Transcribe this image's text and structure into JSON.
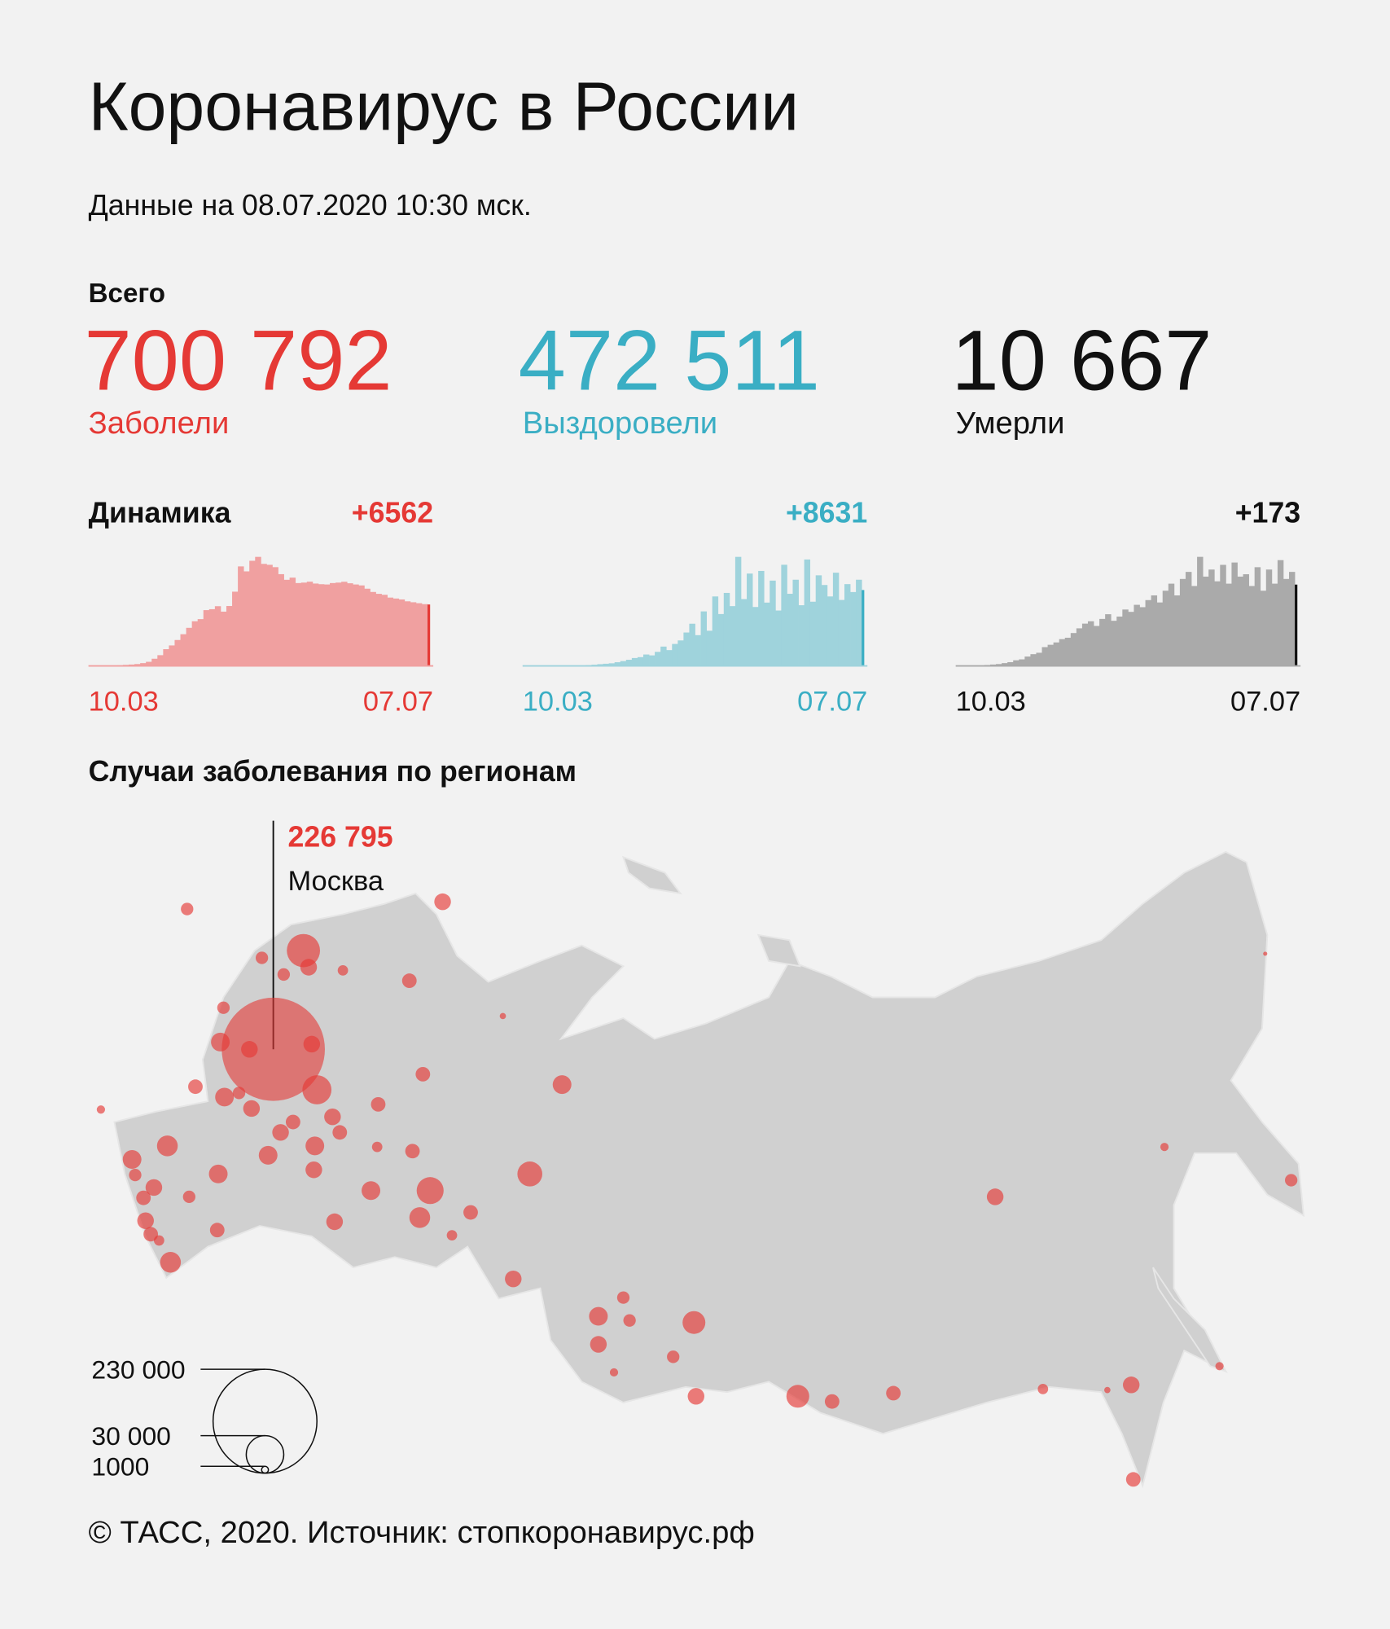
{
  "title": "Коронавирус в России",
  "subtitle": "Данные на 08.07.2020 10:30 мск.",
  "totals": {
    "heading": "Всего",
    "items": [
      {
        "value": "700 792",
        "label": "Заболели",
        "color": "#e53935"
      },
      {
        "value": "472 511",
        "label": "Выздоровели",
        "color": "#3aaec4"
      },
      {
        "value": "10 667",
        "label": "Умерли",
        "color": "#111111"
      }
    ]
  },
  "dynamics": {
    "heading": "Динамика",
    "charts": [
      {
        "type": "bar",
        "delta": "+6562",
        "x_labels": [
          "10.03",
          "07.07"
        ],
        "color": "#f0a0a0",
        "highlight_color": "#e53935",
        "values": [
          3,
          5,
          10,
          20,
          33,
          60,
          114,
          150,
          200,
          300,
          440,
          770,
          1150,
          1790,
          2190,
          2770,
          3390,
          4070,
          4770,
          5000,
          5960,
          6060,
          6380,
          5800,
          6400,
          7930,
          10630,
          10100,
          11230,
          11650,
          10900,
          10800,
          10550,
          9800,
          9200,
          9430,
          8850,
          8900,
          9000,
          8800,
          8730,
          8700,
          8850,
          8900,
          8990,
          8830,
          8700,
          8600,
          8250,
          7900,
          7700,
          7600,
          7300,
          7200,
          7100,
          6900,
          6800,
          6700,
          6600,
          6562
        ]
      },
      {
        "type": "bar",
        "delta": "+8631",
        "x_labels": [
          "10.03",
          "07.07"
        ],
        "color": "#9fd3dc",
        "highlight_color": "#3aaec4",
        "values": [
          0,
          0,
          0,
          0,
          2,
          5,
          10,
          20,
          30,
          45,
          60,
          90,
          140,
          200,
          250,
          300,
          420,
          550,
          700,
          900,
          1000,
          1300,
          1200,
          1600,
          2200,
          1800,
          2500,
          2900,
          3800,
          4800,
          3500,
          6200,
          4000,
          7900,
          5900,
          8300,
          6800,
          12400,
          7600,
          10500,
          6700,
          10800,
          7200,
          9700,
          6300,
          11500,
          8200,
          9800,
          6900,
          12100,
          7300,
          10300,
          9200,
          7900,
          10600,
          7500,
          9300,
          8400,
          9800,
          8631
        ]
      },
      {
        "type": "bar",
        "delta": "+173",
        "x_labels": [
          "10.03",
          "07.07"
        ],
        "color": "#aaaaaa",
        "highlight_color": "#111111",
        "values": [
          0,
          0,
          0,
          0,
          1,
          2,
          3,
          4,
          6,
          8,
          12,
          14,
          20,
          25,
          28,
          40,
          45,
          50,
          57,
          60,
          70,
          80,
          90,
          95,
          85,
          100,
          110,
          96,
          105,
          120,
          115,
          130,
          125,
          140,
          150,
          135,
          160,
          175,
          150,
          185,
          200,
          170,
          232,
          190,
          205,
          180,
          215,
          175,
          220,
          190,
          195,
          170,
          210,
          160,
          205,
          175,
          225,
          185,
          200,
          173
        ]
      }
    ]
  },
  "map": {
    "heading": "Случаи заболевания по регионам",
    "color": "#e53935",
    "highlight": {
      "value": 226795,
      "value_label": "226 795",
      "name": "Москва"
    },
    "other_region_cases": [
      23500,
      5900,
      3300,
      3300,
      3300,
      2300,
      4500,
      5900,
      3300,
      7450,
      5900,
      18000,
      5900,
      4500,
      7450,
      3300,
      5900,
      4500,
      5900,
      5900,
      4500,
      7450,
      7450,
      9200,
      7450,
      3300,
      5900,
      4500,
      5900,
      4500,
      2300,
      9200,
      3300,
      7450,
      4500,
      5900,
      5900,
      7450,
      2300,
      4500,
      15500,
      9200,
      2300,
      4500,
      4500,
      4500,
      830,
      7450,
      13200,
      5900,
      3300,
      7450,
      3300,
      5900,
      11100,
      3300,
      1470,
      5900,
      11100,
      4500,
      4500,
      5900,
      2300,
      830,
      5900,
      4500,
      1470,
      3300,
      1470,
      370,
      1470
    ],
    "legend": [
      {
        "value": 230000,
        "label": "230 000"
      },
      {
        "value": 30000,
        "label": "30 000"
      },
      {
        "value": 1000,
        "label": "1000"
      }
    ]
  },
  "footer": "© ТАСС, 2020. Источник: стопкоронавирус.рф"
}
